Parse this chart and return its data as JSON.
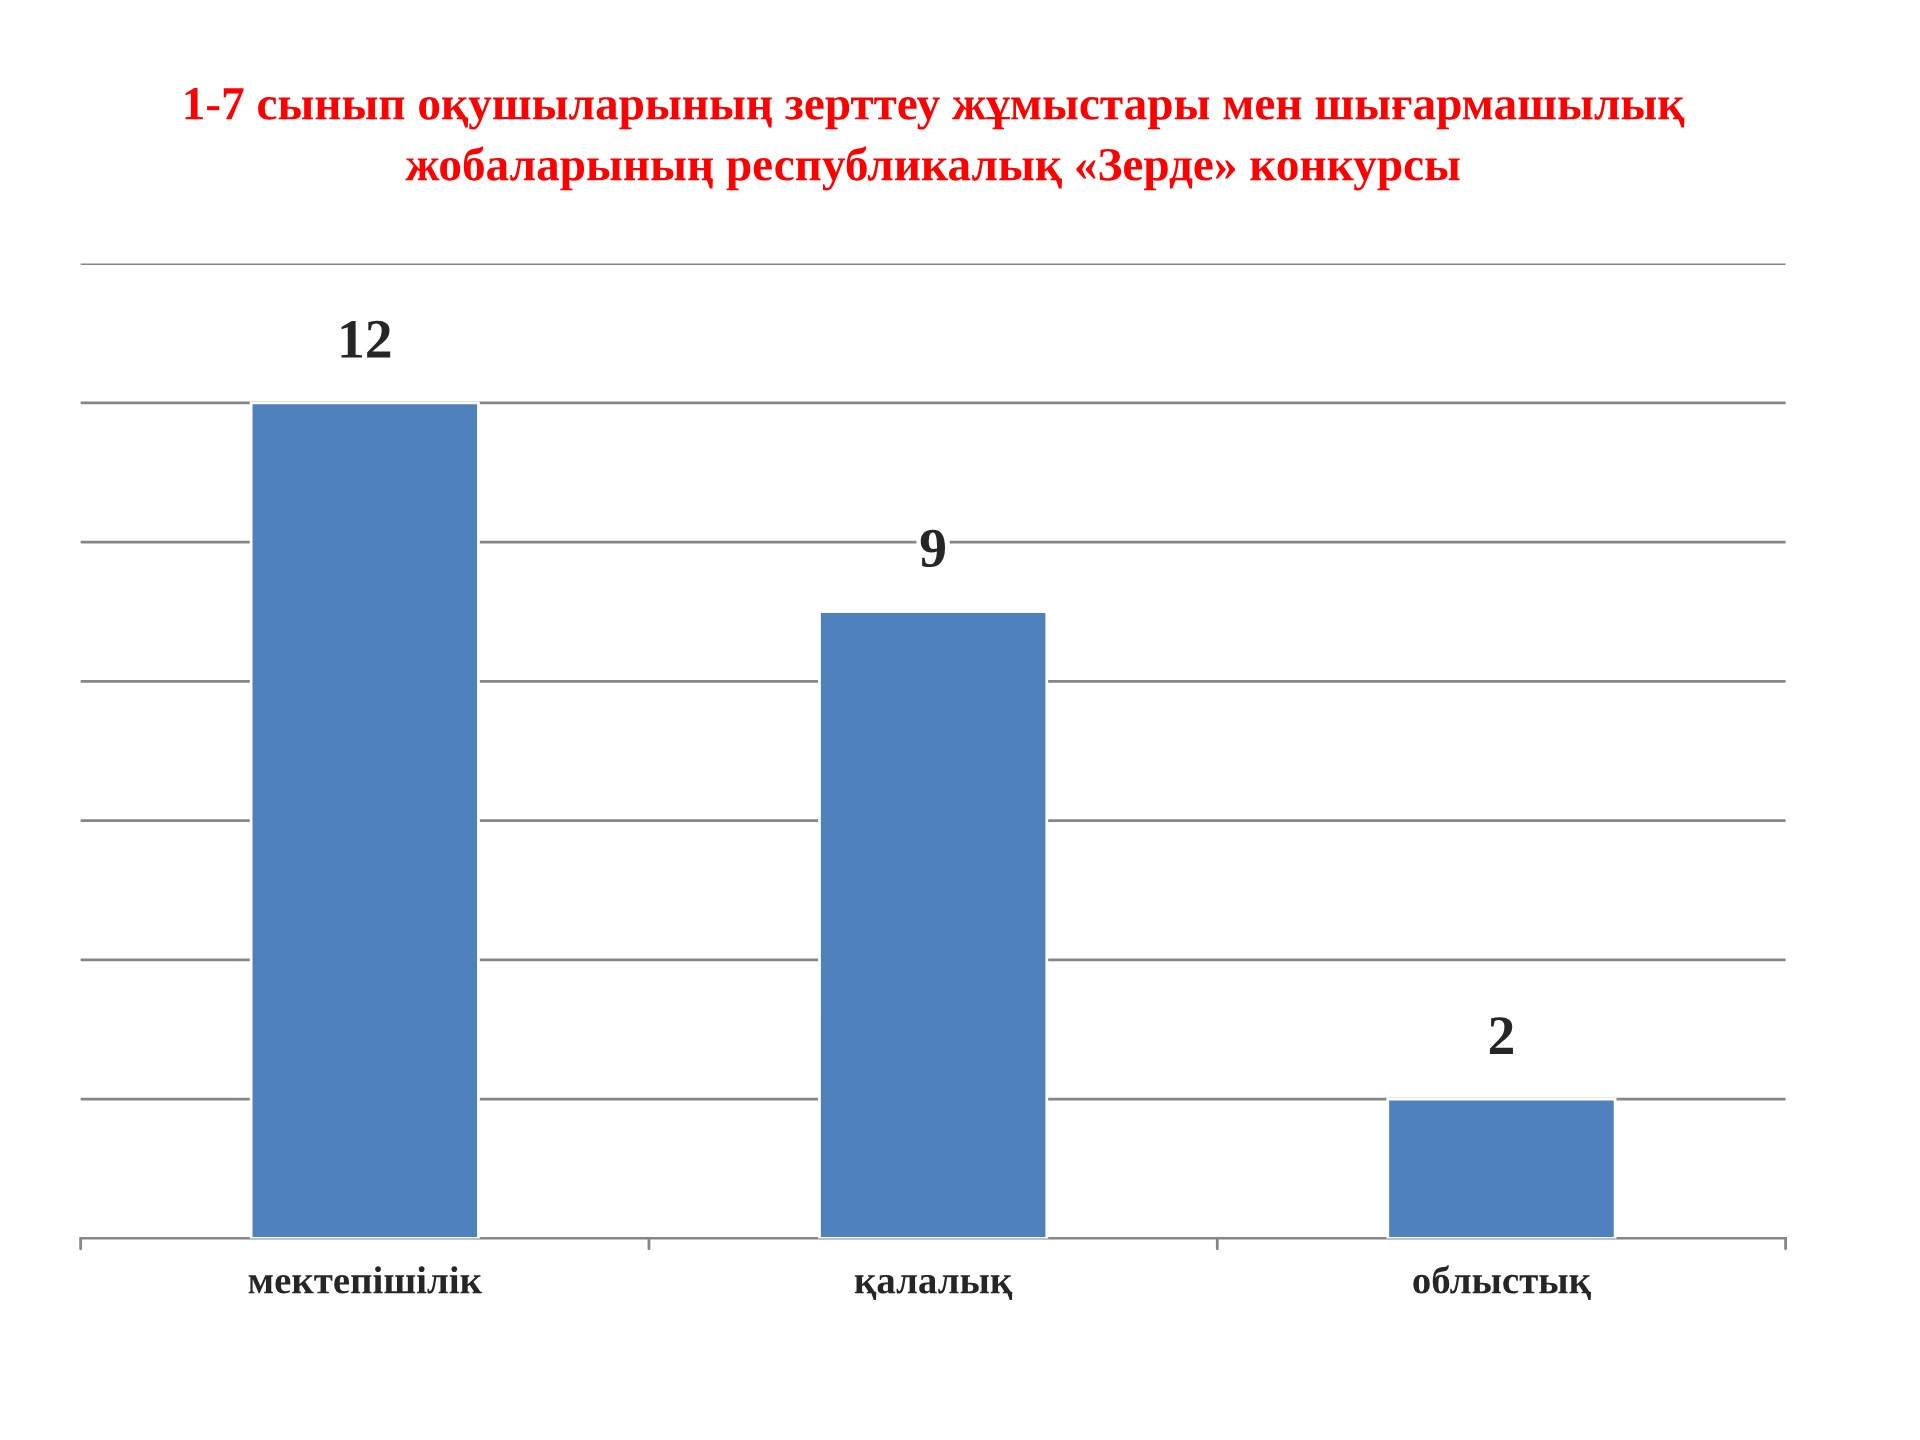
{
  "chart_data": {
    "type": "bar",
    "title": "1-7 сынып оқушыларының зерттеу жұмыстары мен шығармашылық\nжобаларының республикалық «Зерде» конкурсы",
    "categories": [
      "мектепішілік",
      "қалалық",
      "облыстық"
    ],
    "values": [
      12,
      9,
      2
    ],
    "color": "#4f81bd",
    "ylim": [
      0,
      14
    ],
    "yticks": [
      {
        "value": 0,
        "label": null
      },
      {
        "value": 2,
        "label": null
      },
      {
        "value": 4,
        "label": null
      },
      {
        "value": 6,
        "label": null
      },
      {
        "value": 8,
        "label": null
      },
      {
        "value": 10,
        "label": null
      },
      {
        "value": 12,
        "label": null
      },
      {
        "value": 14,
        "label": null
      }
    ],
    "grid": "y",
    "data_labels": true,
    "tick_labels": "x"
  }
}
